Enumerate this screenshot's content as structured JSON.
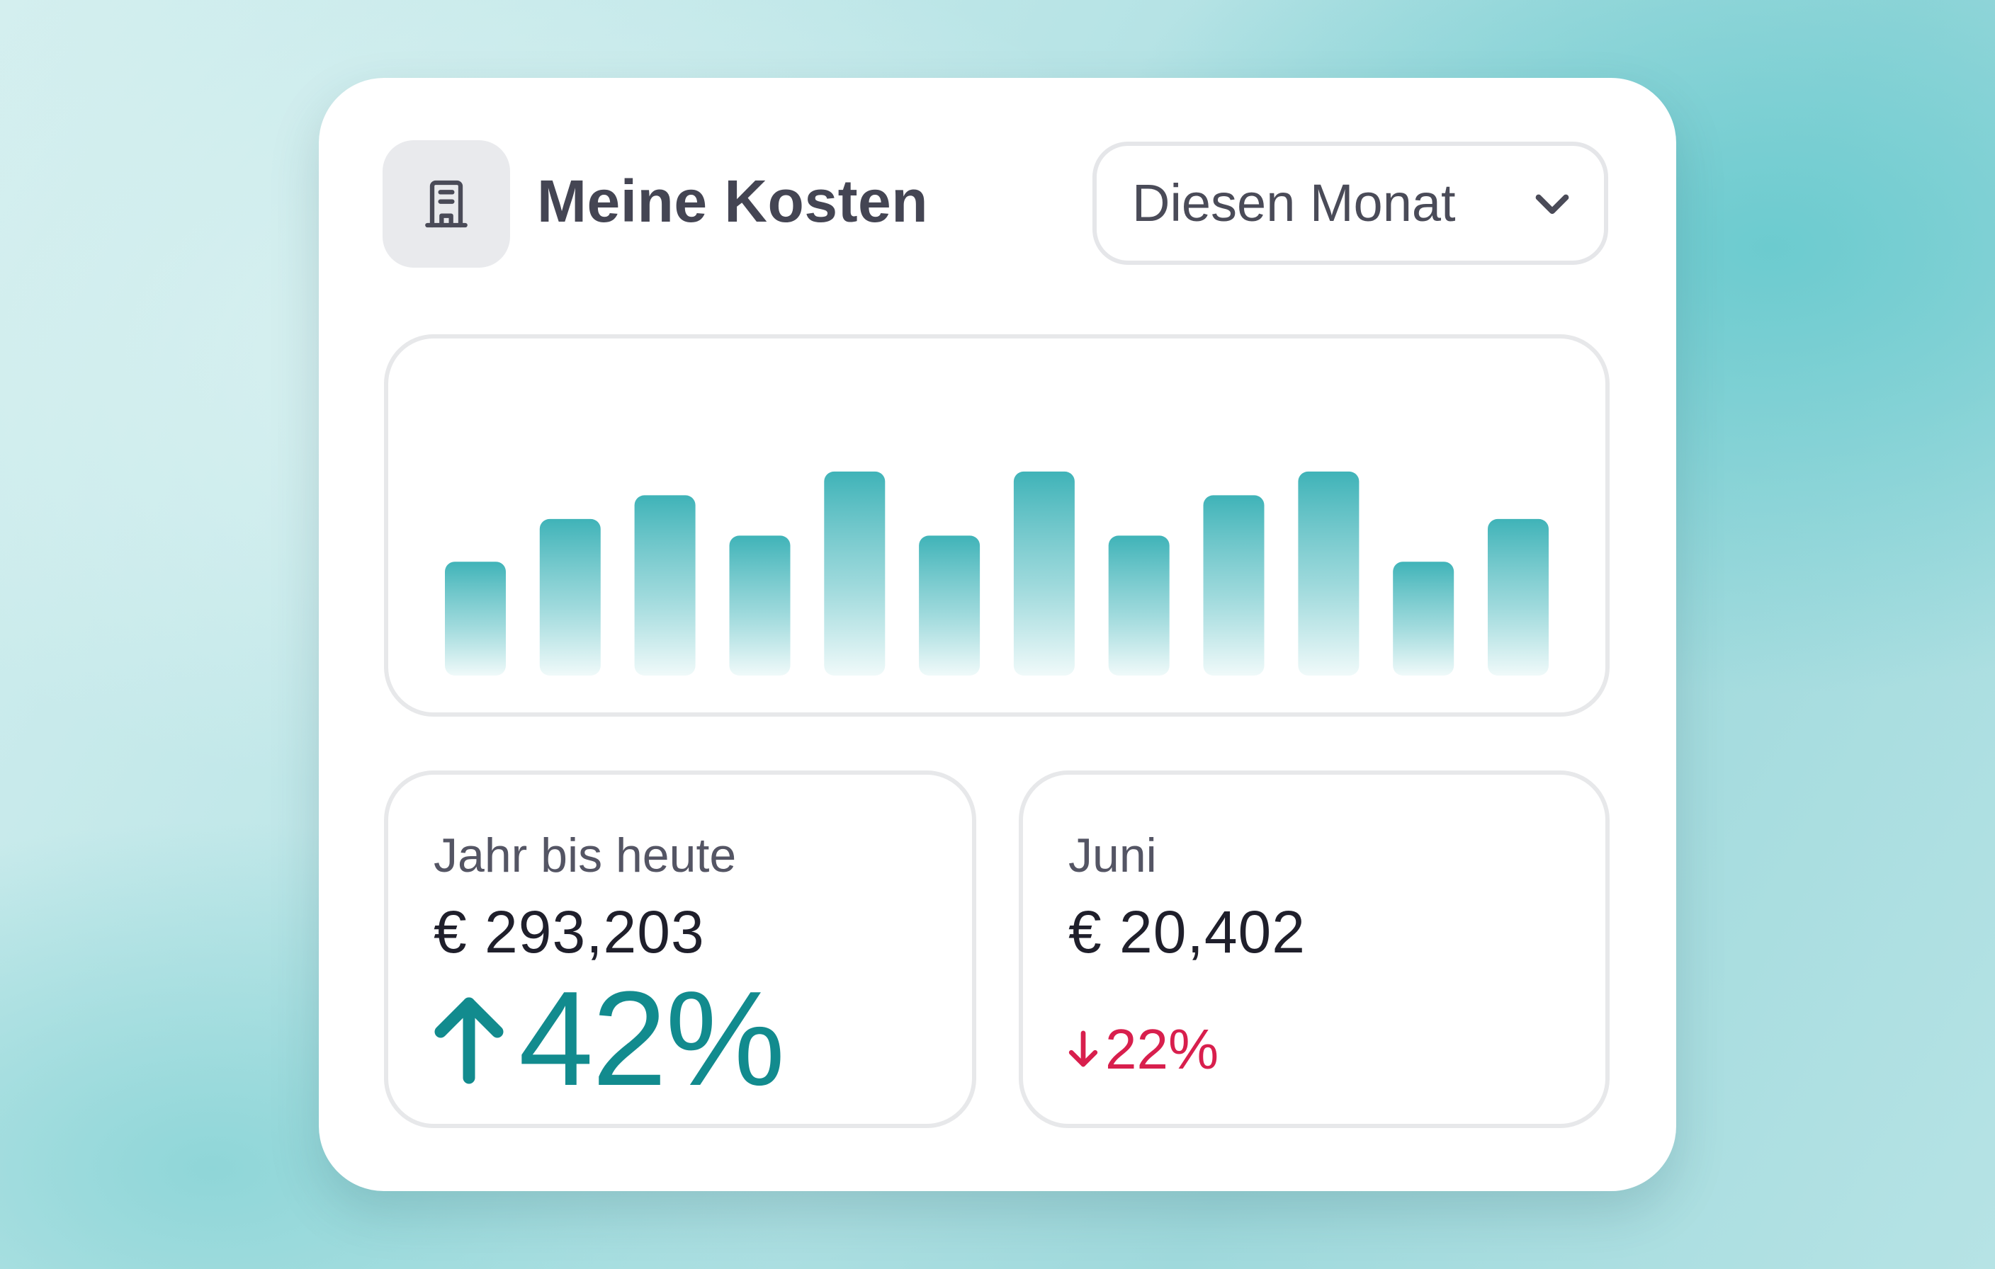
{
  "widget": {
    "title": "Meine Kosten",
    "icon": "building-icon",
    "period_selector": {
      "selected": "Diesen Monat",
      "icon": "chevron-down-icon"
    }
  },
  "chart_data": {
    "type": "bar",
    "values": [
      48,
      66,
      76,
      59,
      86,
      59,
      86,
      59,
      76,
      86,
      48,
      66
    ],
    "ylim": [
      0,
      100
    ],
    "grid": false,
    "color": "#3fb3b8"
  },
  "stats": [
    {
      "label": "Jahr bis heute",
      "value": "€ 293,203",
      "change": "42%",
      "direction": "up",
      "color": "#128b8e"
    },
    {
      "label": "Juni",
      "value": "€ 20,402",
      "change": "22%",
      "direction": "down",
      "color": "#d81f4d"
    }
  ]
}
